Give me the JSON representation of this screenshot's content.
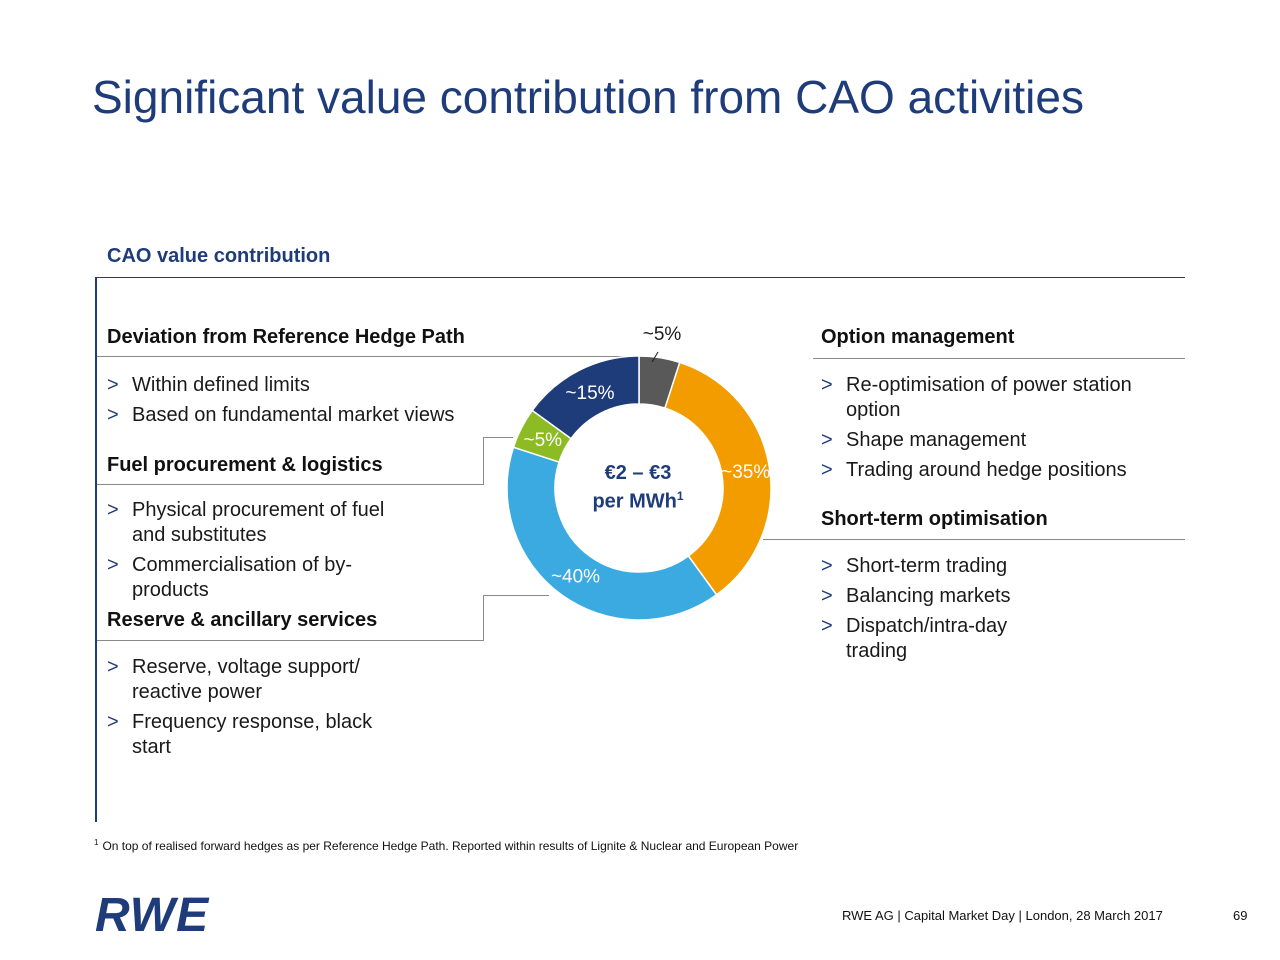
{
  "title": "Significant value contribution from CAO activities",
  "subtitle": "CAO value contribution",
  "left": {
    "sections": [
      {
        "heading": "Deviation from Reference Hedge Path",
        "bullets": [
          "Within defined limits",
          "Based on fundamental market views"
        ]
      },
      {
        "heading": "Fuel procurement & logistics",
        "bullets": [
          "Physical procurement of fuel and substitutes",
          "Commercialisation of by-products"
        ]
      },
      {
        "heading": "Reserve & ancillary services",
        "bullets": [
          "Reserve, voltage support/ reactive power",
          "Frequency response, black start"
        ]
      }
    ]
  },
  "right": {
    "sections": [
      {
        "heading": "Option management",
        "bullets": [
          "Re-optimisation of power station option",
          "Shape management",
          "Trading around hedge positions"
        ]
      },
      {
        "heading": "Short-term optimisation",
        "bullets": [
          "Short-term trading",
          "Balancing markets",
          "Dispatch/intra-day trading"
        ]
      }
    ]
  },
  "bullet_marker": ">",
  "chart_data": {
    "type": "pie",
    "donut": true,
    "center_label_line1": "€2 – €3",
    "center_label_line2": "per MWh",
    "center_label_sup": "1",
    "slices": [
      {
        "label": "~5%",
        "value": 5,
        "color": "#595959"
      },
      {
        "label": "~35%",
        "value": 35,
        "color": "#f29c00"
      },
      {
        "label": "~40%",
        "value": 40,
        "color": "#3aaae1"
      },
      {
        "label": "~5%",
        "value": 5,
        "color": "#8cbb23"
      },
      {
        "label": "~15%",
        "value": 15,
        "color": "#1f3c7a"
      }
    ]
  },
  "footnote": {
    "marker": "1",
    "text": "On top of realised forward hedges as per Reference Hedge Path. Reported within results of Lignite & Nuclear and European Power"
  },
  "footer": "RWE AG | Capital Market Day | London, 28 March 2017",
  "page_number": "69",
  "logo_text": "RWE"
}
